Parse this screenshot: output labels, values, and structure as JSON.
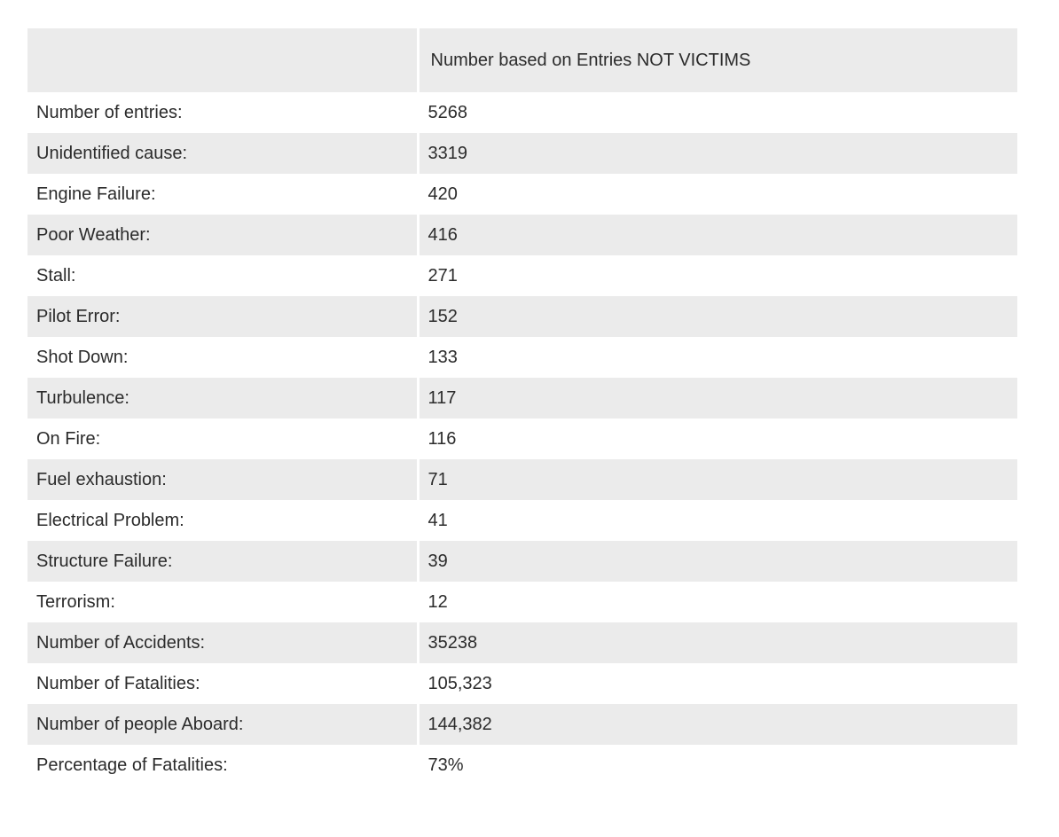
{
  "table": {
    "header": {
      "col1": "",
      "col2": "Number based on Entries NOT VICTIMS"
    },
    "rows": [
      {
        "label": "Number of entries:",
        "value": "5268"
      },
      {
        "label": "Unidentified cause:",
        "value": "3319"
      },
      {
        "label": "Engine Failure:",
        "value": "420"
      },
      {
        "label": "Poor Weather:",
        "value": "416"
      },
      {
        "label": "Stall:",
        "value": "271"
      },
      {
        "label": "Pilot Error:",
        "value": "152"
      },
      {
        "label": "Shot Down:",
        "value": "133"
      },
      {
        "label": "Turbulence:",
        "value": "117"
      },
      {
        "label": "On Fire:",
        "value": "116"
      },
      {
        "label": "Fuel exhaustion:",
        "value": "71"
      },
      {
        "label": "Electrical Problem:",
        "value": "41"
      },
      {
        "label": "Structure Failure:",
        "value": "39"
      },
      {
        "label": "Terrorism:",
        "value": "12"
      },
      {
        "label": "Number of Accidents:",
        "value": "35238"
      },
      {
        "label": "Number of Fatalities:",
        "value": "105,323"
      },
      {
        "label": "Number of people Aboard:",
        "value": "144,382"
      },
      {
        "label": "Percentage of Fatalities:",
        "value": "73%"
      }
    ]
  },
  "colors": {
    "stripe": "#ebebeb",
    "text": "#2b2b2b",
    "background": "#ffffff"
  }
}
